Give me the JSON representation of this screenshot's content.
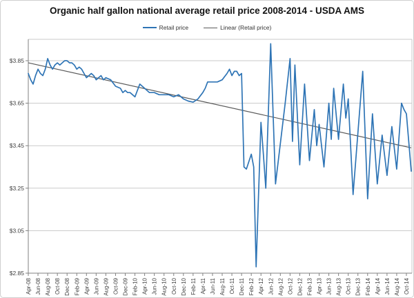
{
  "title": "Organic half gallon national average retail price 2008-2014 - USDA AMS",
  "legend": {
    "items": [
      {
        "label": "Retail price",
        "color": "#2E74B5"
      },
      {
        "label": "Linear (Retail price)",
        "color": "#595959"
      }
    ]
  },
  "colors": {
    "retail_line": "#2E74B5",
    "trend_line": "#595959",
    "gridline": "#c9c9c9",
    "axis": "#808080",
    "plot_border": "#c9c9c9",
    "label_text": "#404040"
  },
  "chart_data": {
    "type": "line",
    "title": "Organic half gallon national average retail price 2008-2014 - USDA AMS",
    "grid": "horizontal",
    "legend_position": "top",
    "ylabel": "",
    "xlabel": "",
    "ylim": [
      2.85,
      3.95
    ],
    "y_tick_labels": [
      "$3.85",
      "$3.65",
      "$3.45",
      "$3.25",
      "$3.05",
      "$2.85"
    ],
    "y_tick_values": [
      3.85,
      3.65,
      3.45,
      3.25,
      3.05,
      2.85
    ],
    "x_tick_labels": [
      "Apr-08",
      "Jun-08",
      "Aug-08",
      "Oct-08",
      "Dec-08",
      "Feb-09",
      "Apr-09",
      "Jun-09",
      "Aug-09",
      "Oct-09",
      "Dec-09",
      "Feb-10",
      "Apr-10",
      "Jun-10",
      "Aug-10",
      "Oct-10",
      "Dec-10",
      "Feb-11",
      "Apr-11",
      "Jun-11",
      "Aug-11",
      "Oct-11",
      "Dec-11",
      "Feb-12",
      "Apr-12",
      "Jun-12",
      "Aug-12",
      "Oct-12",
      "Dec-12",
      "Feb-13",
      "Apr-13",
      "Jun-13",
      "Aug-13",
      "Oct-13",
      "Dec-13",
      "Feb-14",
      "Apr-14",
      "Jun-14",
      "Aug-14",
      "Oct-14"
    ],
    "x_tick_step_months": 2,
    "x_start_month": "Apr-08",
    "x_end_month": "Nov-14",
    "total_months": 79,
    "series": [
      {
        "name": "Retail price",
        "color": "#2E74B5",
        "points_format": "[month_index_from_Apr08, price_usd]",
        "points": [
          [
            0,
            3.79
          ],
          [
            0.5,
            3.76
          ],
          [
            1,
            3.74
          ],
          [
            1.5,
            3.78
          ],
          [
            2,
            3.81
          ],
          [
            2.5,
            3.79
          ],
          [
            3,
            3.78
          ],
          [
            3.5,
            3.81
          ],
          [
            4,
            3.86
          ],
          [
            4.5,
            3.83
          ],
          [
            5,
            3.81
          ],
          [
            5.5,
            3.83
          ],
          [
            6,
            3.84
          ],
          [
            6.5,
            3.83
          ],
          [
            7,
            3.84
          ],
          [
            7.5,
            3.85
          ],
          [
            8,
            3.85
          ],
          [
            8.5,
            3.84
          ],
          [
            9,
            3.84
          ],
          [
            9.5,
            3.83
          ],
          [
            10,
            3.81
          ],
          [
            10.5,
            3.82
          ],
          [
            11,
            3.81
          ],
          [
            11.5,
            3.79
          ],
          [
            12,
            3.77
          ],
          [
            12.5,
            3.78
          ],
          [
            13,
            3.79
          ],
          [
            13.5,
            3.78
          ],
          [
            14,
            3.76
          ],
          [
            14.5,
            3.77
          ],
          [
            15,
            3.78
          ],
          [
            15.5,
            3.76
          ],
          [
            16,
            3.77
          ],
          [
            17,
            3.76
          ],
          [
            18,
            3.73
          ],
          [
            19,
            3.72
          ],
          [
            19.5,
            3.7
          ],
          [
            20,
            3.71
          ],
          [
            20.5,
            3.7
          ],
          [
            21,
            3.7
          ],
          [
            22,
            3.68
          ],
          [
            23,
            3.74
          ],
          [
            24,
            3.72
          ],
          [
            25,
            3.7
          ],
          [
            26,
            3.7
          ],
          [
            27,
            3.69
          ],
          [
            28,
            3.69
          ],
          [
            29,
            3.69
          ],
          [
            30,
            3.68
          ],
          [
            31,
            3.69
          ],
          [
            32,
            3.67
          ],
          [
            33,
            3.66
          ],
          [
            34,
            3.655
          ],
          [
            35,
            3.67
          ],
          [
            36,
            3.7
          ],
          [
            36.5,
            3.72
          ],
          [
            37,
            3.75
          ],
          [
            38,
            3.75
          ],
          [
            39,
            3.75
          ],
          [
            40,
            3.76
          ],
          [
            41,
            3.79
          ],
          [
            41.5,
            3.81
          ],
          [
            42,
            3.78
          ],
          [
            42.5,
            3.8
          ],
          [
            43,
            3.8
          ],
          [
            43.5,
            3.78
          ],
          [
            44,
            3.79
          ],
          [
            44.5,
            3.35
          ],
          [
            45,
            3.34
          ],
          [
            46,
            3.41
          ],
          [
            46.5,
            3.35
          ],
          [
            47,
            2.88
          ],
          [
            48,
            3.56
          ],
          [
            48.5,
            3.41
          ],
          [
            49,
            3.25
          ],
          [
            50,
            3.93
          ],
          [
            51,
            3.27
          ],
          [
            52,
            3.46
          ],
          [
            53,
            3.65
          ],
          [
            54,
            3.86
          ],
          [
            54.5,
            3.47
          ],
          [
            55,
            3.83
          ],
          [
            56,
            3.36
          ],
          [
            57,
            3.74
          ],
          [
            58,
            3.38
          ],
          [
            59,
            3.62
          ],
          [
            59.5,
            3.45
          ],
          [
            60,
            3.55
          ],
          [
            61,
            3.35
          ],
          [
            62,
            3.65
          ],
          [
            62.5,
            3.48
          ],
          [
            63,
            3.72
          ],
          [
            64,
            3.48
          ],
          [
            65,
            3.74
          ],
          [
            65.5,
            3.58
          ],
          [
            66,
            3.67
          ],
          [
            67,
            3.22
          ],
          [
            68,
            3.51
          ],
          [
            69,
            3.8
          ],
          [
            70,
            3.2
          ],
          [
            71,
            3.6
          ],
          [
            72,
            3.27
          ],
          [
            73,
            3.5
          ],
          [
            74,
            3.31
          ],
          [
            75,
            3.54
          ],
          [
            76,
            3.34
          ],
          [
            77,
            3.65
          ],
          [
            77.5,
            3.62
          ],
          [
            78,
            3.6
          ],
          [
            79,
            3.33
          ]
        ]
      },
      {
        "name": "Linear (Retail price)",
        "color": "#595959",
        "type": "linear_trend",
        "start_value": 3.84,
        "end_value": 3.44
      }
    ]
  }
}
